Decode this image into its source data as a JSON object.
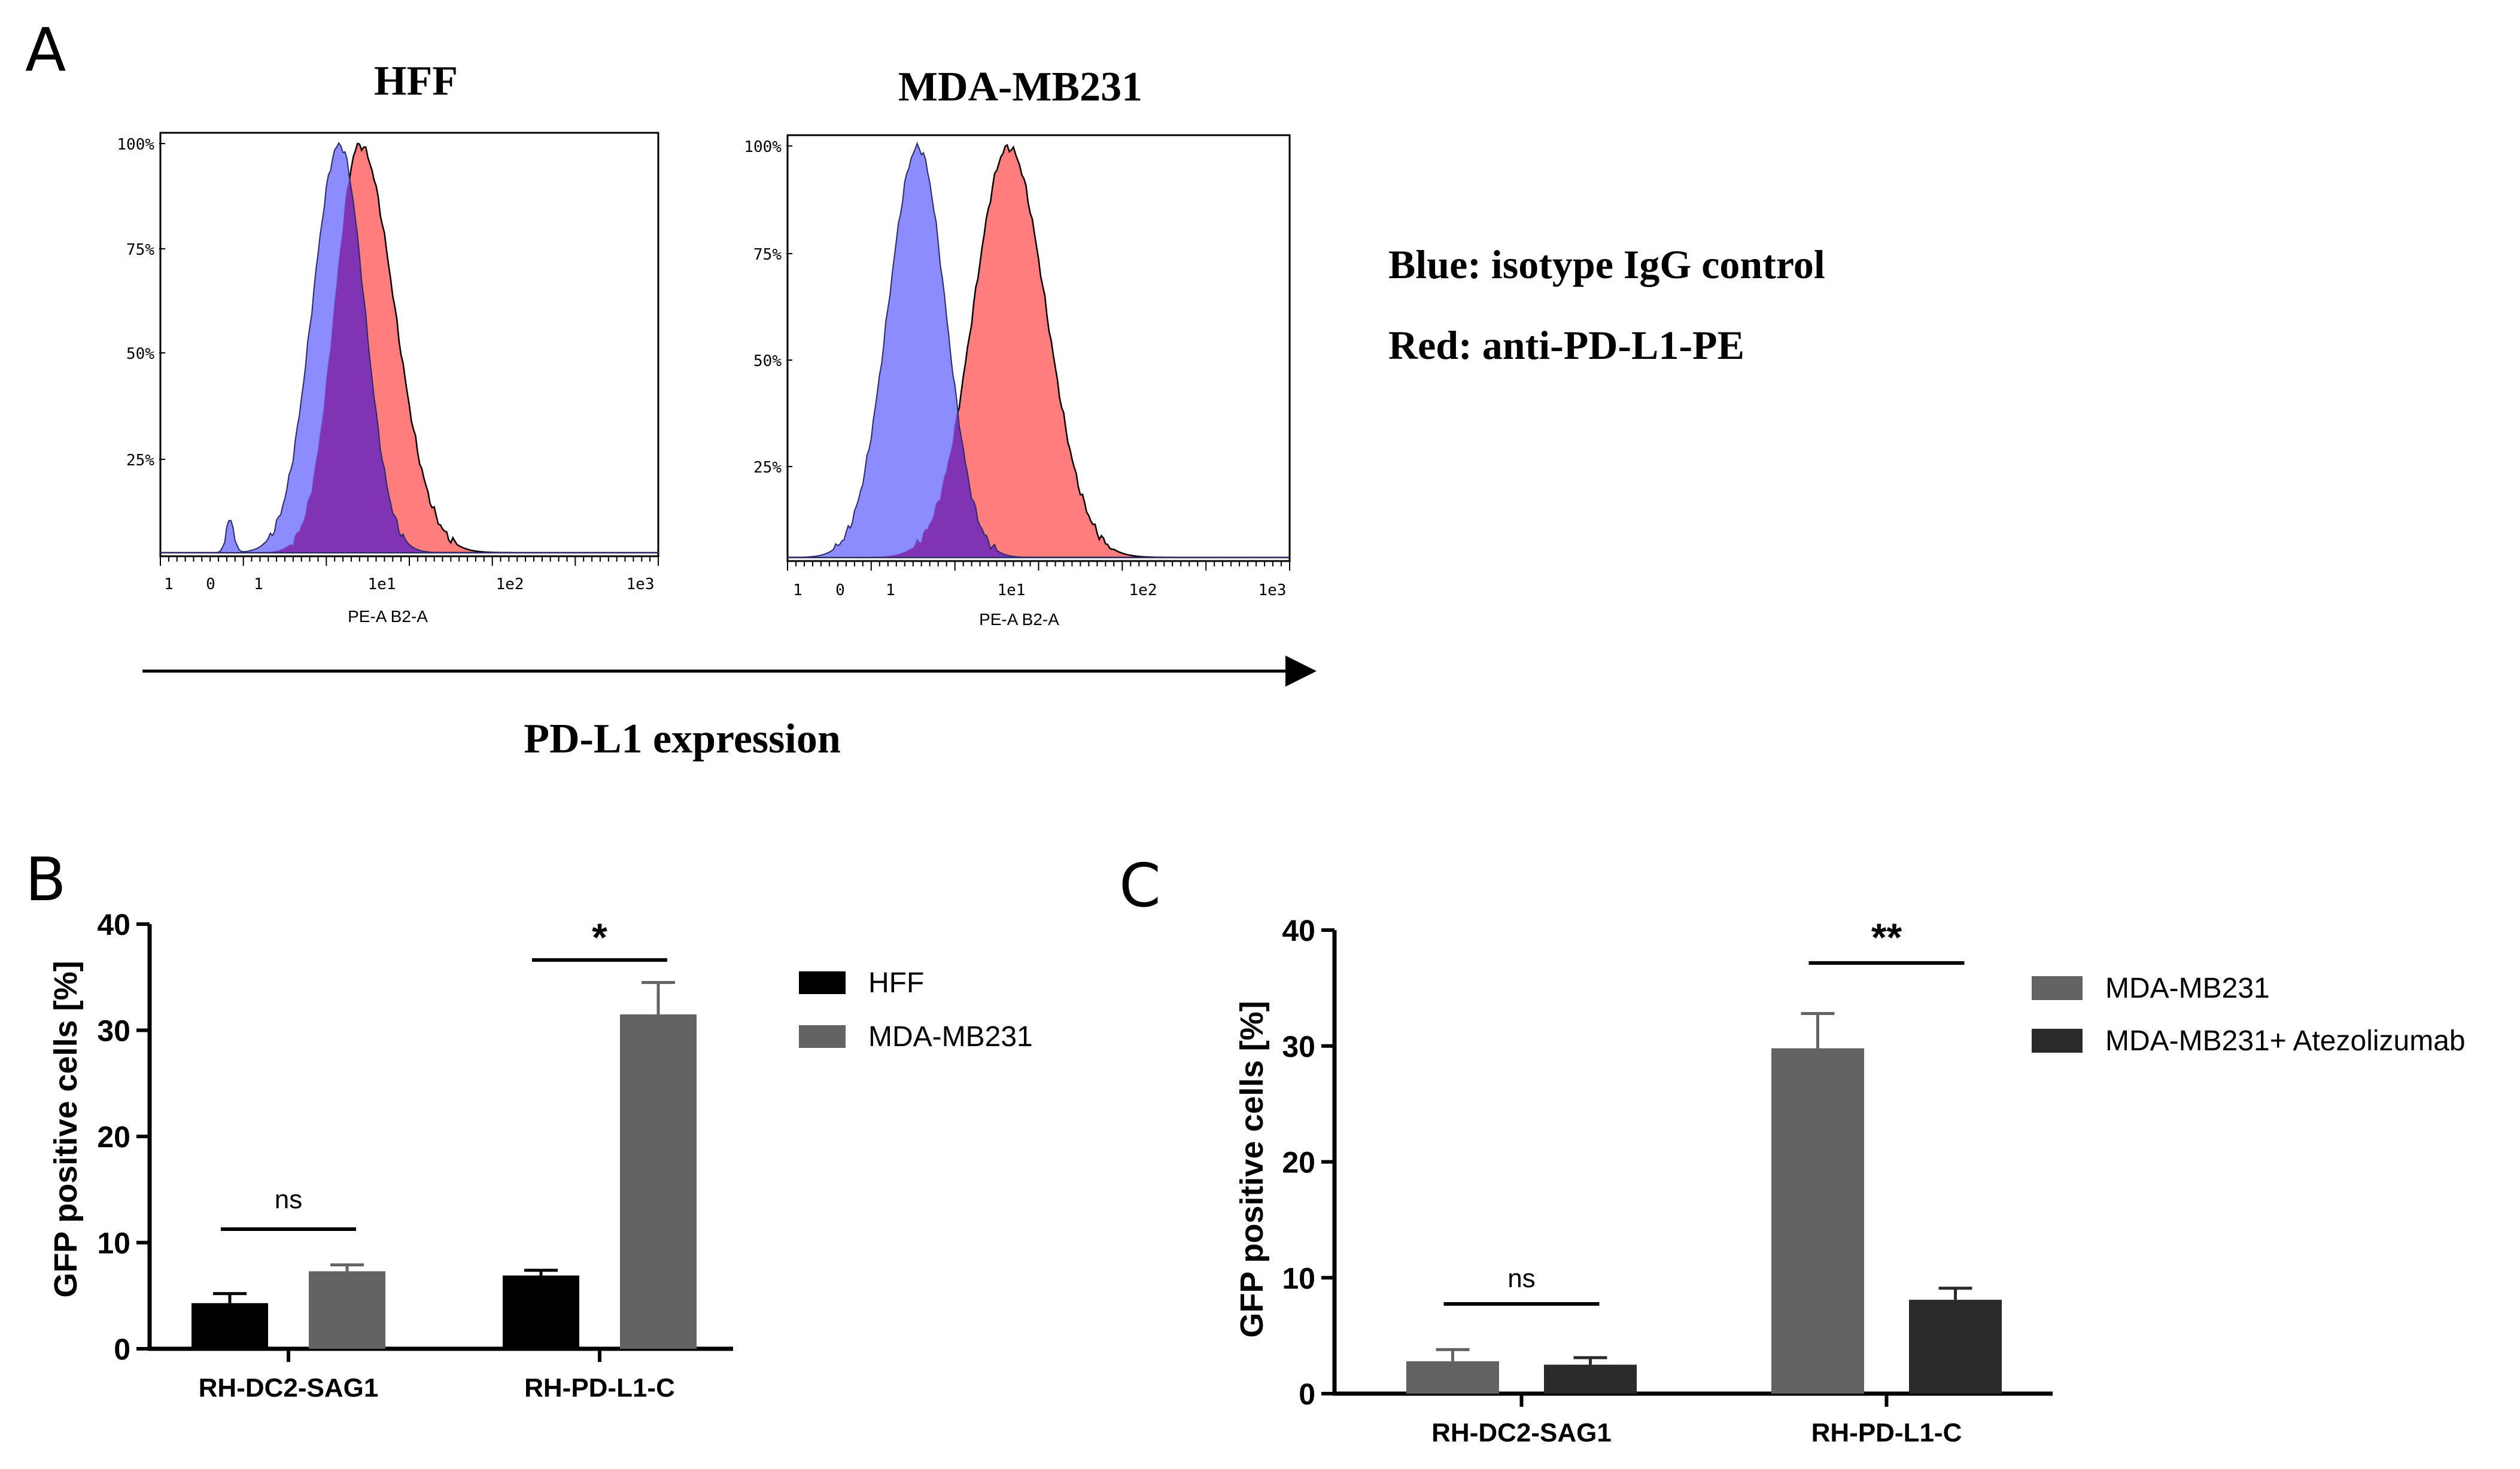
{
  "panels": {
    "a": "A",
    "b": "B",
    "c": "C"
  },
  "colors": {
    "isotype_fill": "#7f7fff",
    "pdl1_fill": "#ff6f6f",
    "overlap_fill": "#8030b0",
    "hff_bar": "#000000",
    "mda_bar": "#636363",
    "atezo_bar": "#2a2a2a"
  },
  "panel_a": {
    "legend": {
      "blue": "Blue: isotype IgG control",
      "red": "Red: anti-PD-L1-PE"
    },
    "shared_xlabel": "PD-L1 expression",
    "histograms": [
      {
        "title": "HFF",
        "xlabel": "PE-A B2-A",
        "yticks": [
          "100%",
          "75%",
          "50%",
          "25%"
        ],
        "xticks": [
          "1",
          "0",
          "1",
          "1e1",
          "1e2",
          "1e3"
        ],
        "isotype": {
          "peak_x": 0.36,
          "sigma_left": 0.055,
          "sigma_right": 0.05,
          "minor_peak_x": 0.14
        },
        "pdl1": {
          "peak_x": 0.4,
          "sigma_left": 0.05,
          "sigma_right": 0.07
        }
      },
      {
        "title": "MDA-MB231",
        "xlabel": "PE-A B2-A",
        "yticks": [
          "100%",
          "75%",
          "50%",
          "25%"
        ],
        "xticks": [
          "1",
          "0",
          "1",
          "1e1",
          "1e2",
          "1e3"
        ],
        "isotype": {
          "peak_x": 0.26,
          "sigma_left": 0.06,
          "sigma_right": 0.055,
          "minor_peak_x": null
        },
        "pdl1": {
          "peak_x": 0.44,
          "sigma_left": 0.07,
          "sigma_right": 0.075
        }
      }
    ]
  },
  "chart_data": [
    {
      "type": "bar",
      "panel": "B",
      "ylabel": "GFP positive cells [%]",
      "ylim": [
        0,
        40
      ],
      "yticks": [
        0,
        10,
        20,
        30,
        40
      ],
      "categories": [
        "RH-DC2-SAG1",
        "RH-PD-L1-C"
      ],
      "series": [
        {
          "name": "HFF",
          "values": [
            4.3,
            6.9
          ],
          "errors": [
            0.9,
            0.5
          ]
        },
        {
          "name": "MDA-MB231",
          "values": [
            7.3,
            31.5
          ],
          "errors": [
            0.6,
            3.0
          ]
        }
      ],
      "significance": [
        "ns",
        "*"
      ],
      "legend_position": "top-right"
    },
    {
      "type": "bar",
      "panel": "C",
      "ylabel": "GFP positive cells [%]",
      "ylim": [
        0,
        40
      ],
      "yticks": [
        0,
        10,
        20,
        30,
        40
      ],
      "categories": [
        "RH-DC2-SAG1",
        "RH-PD-L1-C"
      ],
      "series": [
        {
          "name": "MDA-MB231",
          "values": [
            2.8,
            29.8
          ],
          "errors": [
            1.0,
            3.0
          ]
        },
        {
          "name": "MDA-MB231+ Atezolizumab",
          "values": [
            2.5,
            8.1
          ],
          "errors": [
            0.6,
            1.0
          ]
        }
      ],
      "significance": [
        "ns",
        "**"
      ],
      "legend_position": "top-right"
    }
  ]
}
